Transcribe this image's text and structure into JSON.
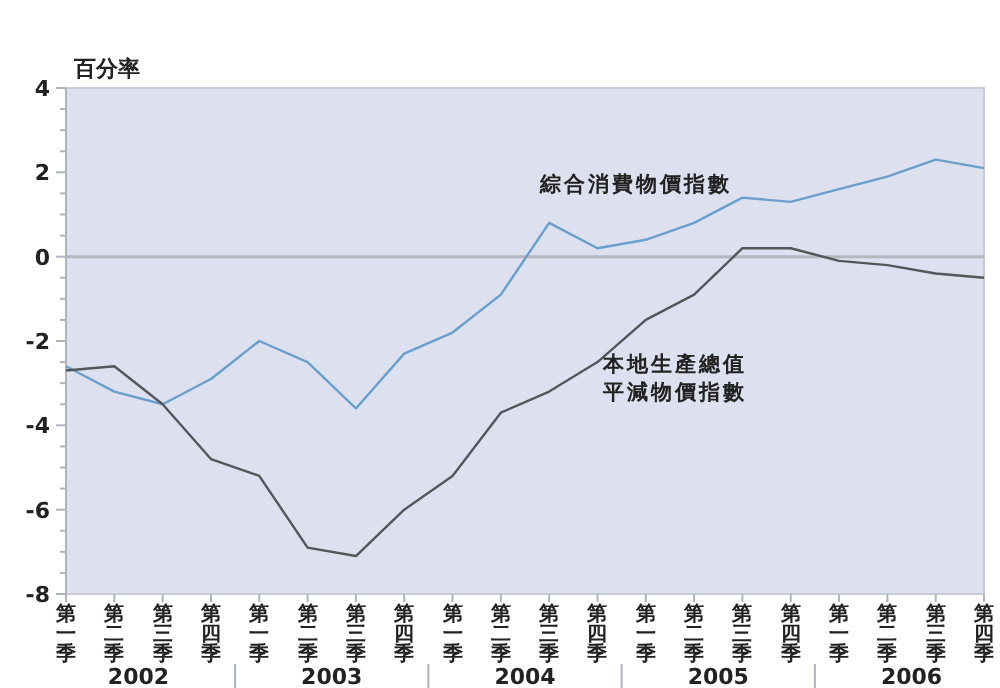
{
  "chart_data": {
    "type": "line",
    "ylabel": "百分率",
    "categories": [
      "第一季",
      "第二季",
      "第三季",
      "第四季",
      "第一季",
      "第二季",
      "第三季",
      "第四季",
      "第一季",
      "第二季",
      "第三季",
      "第四季",
      "第一季",
      "第二季",
      "第三季",
      "第四季",
      "第一季",
      "第二季",
      "第三季",
      "第四季"
    ],
    "annotations": [
      "2002",
      "2003",
      "2004",
      "2005",
      "2006"
    ],
    "series": [
      {
        "name": "綜合消費物價指數",
        "color": "#6a9fcb",
        "values": [
          -2.6,
          -3.2,
          -3.5,
          -2.9,
          -2.0,
          -2.5,
          -3.6,
          -2.3,
          -1.8,
          -0.9,
          0.8,
          0.2,
          0.4,
          0.8,
          1.4,
          1.3,
          1.6,
          1.9,
          2.3,
          2.1
        ]
      },
      {
        "name": "本地生產總值平減物價指數",
        "color": "#55565c",
        "values": [
          -2.7,
          -2.6,
          -3.5,
          -4.8,
          -5.2,
          -6.9,
          -7.1,
          -6.0,
          -5.2,
          -3.7,
          -3.2,
          -2.5,
          -1.5,
          -0.9,
          0.2,
          0.2,
          -0.1,
          -0.2,
          -0.4,
          -0.5
        ]
      }
    ],
    "ylim": [
      -8,
      4
    ],
    "yticks": [
      -8,
      {
        "value": -7.5,
        "label": null
      },
      {
        "value": -7,
        "label": null
      },
      {
        "value": -6.5,
        "label": null
      },
      -6,
      {
        "value": -5.5,
        "label": null
      },
      {
        "value": -5,
        "label": null
      },
      {
        "value": -4.5,
        "label": null
      },
      -4,
      {
        "value": -3.5,
        "label": null
      },
      {
        "value": -3,
        "label": null
      },
      {
        "value": -2.5,
        "label": null
      },
      -2,
      {
        "value": -1.5,
        "label": null
      },
      {
        "value": -1,
        "label": null
      },
      {
        "value": -0.5,
        "label": null
      },
      0,
      {
        "value": 0.5,
        "label": null
      },
      {
        "value": 1,
        "label": null
      },
      {
        "value": 1.5,
        "label": null
      },
      2,
      {
        "value": 2.5,
        "label": null
      },
      {
        "value": 3,
        "label": null
      },
      {
        "value": 3.5,
        "label": null
      },
      4
    ],
    "ref_lines": [
      {
        "axis": "y",
        "value": 0,
        "color": "#b4b6c0"
      }
    ],
    "legend": false,
    "grid": false,
    "marker": "none",
    "line_style": "solid"
  }
}
